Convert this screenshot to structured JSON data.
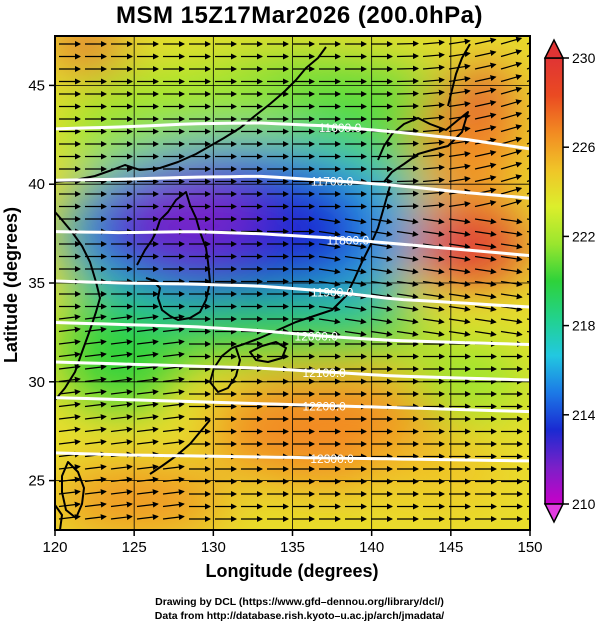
{
  "title": "MSM 15Z17Mar2026 (200.0hPa)",
  "x_axis": {
    "label": "Longitude (degrees)",
    "ticks": [
      "120",
      "125",
      "130",
      "135",
      "140",
      "145",
      "150"
    ],
    "range": [
      120,
      150
    ]
  },
  "y_axis": {
    "label": "Latitude  (degrees)",
    "ticks": [
      "25",
      "30",
      "35",
      "40",
      "45"
    ],
    "range": [
      22.5,
      47.5
    ]
  },
  "colorbar": {
    "range": [
      210,
      230
    ],
    "ticks": [
      "230",
      "226",
      "222",
      "218",
      "214",
      "210"
    ],
    "colors": [
      "#c800c8",
      "#7a20c8",
      "#1a2ad2",
      "#1c7ae6",
      "#22c8e0",
      "#22d28c",
      "#2ed23a",
      "#9ae62e",
      "#dcee2c",
      "#f0c428",
      "#f28a22",
      "#ea4a22",
      "#e03434"
    ]
  },
  "contours": [
    {
      "label": "11600.0",
      "lat_at_west": 42.8
    },
    {
      "label": "11700.0",
      "lat_at_west": 40.2
    },
    {
      "label": "11800.0",
      "lat_at_west": 37.6
    },
    {
      "label": "11900.0",
      "lat_at_west": 35.1
    },
    {
      "label": "12000.0",
      "lat_at_west": 33.0
    },
    {
      "label": "12100.0",
      "lat_at_west": 31.0
    },
    {
      "label": "12200.0",
      "lat_at_west": 29.2
    },
    {
      "label": "12300.0",
      "lat_at_west": 26.4
    }
  ],
  "contour_color": "#ffffff",
  "vector_color": "#000000",
  "credit_line_1": "Drawing by DCL (https://www.gfd–dennou.org/library/dcl/)",
  "credit_line_2": "Data from http://database.rish.kyoto–u.ac.jp/arch/jmadata/"
}
